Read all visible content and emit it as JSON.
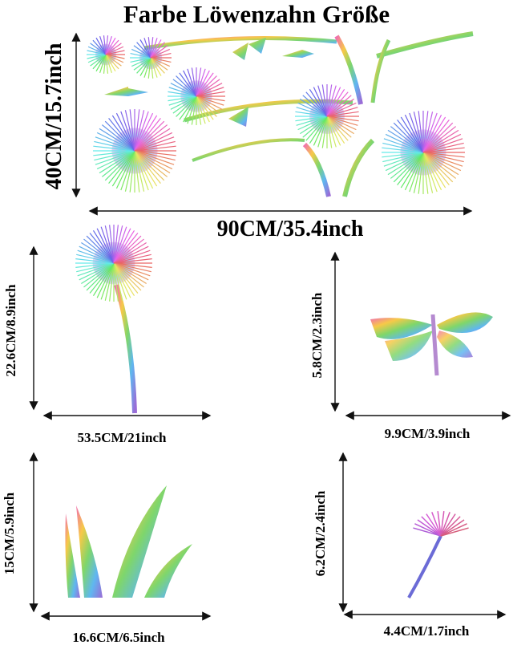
{
  "header": {
    "title": "Farbe Löwenzahn Größe"
  },
  "panels": [
    {
      "height": "40CM/15.7inch",
      "width": "90CM/35.4inch"
    },
    {
      "height": "22.6CM/8.9inch",
      "width": "53.5CM/21inch"
    },
    {
      "height": "5.8CM/2.3inch",
      "width": "9.9CM/3.9inch"
    },
    {
      "height": "15CM/5.9inch",
      "width": "16.6CM/6.5inch"
    },
    {
      "height": "6.2CM/2.4inch",
      "width": "4.4CM/1.7inch"
    }
  ]
}
